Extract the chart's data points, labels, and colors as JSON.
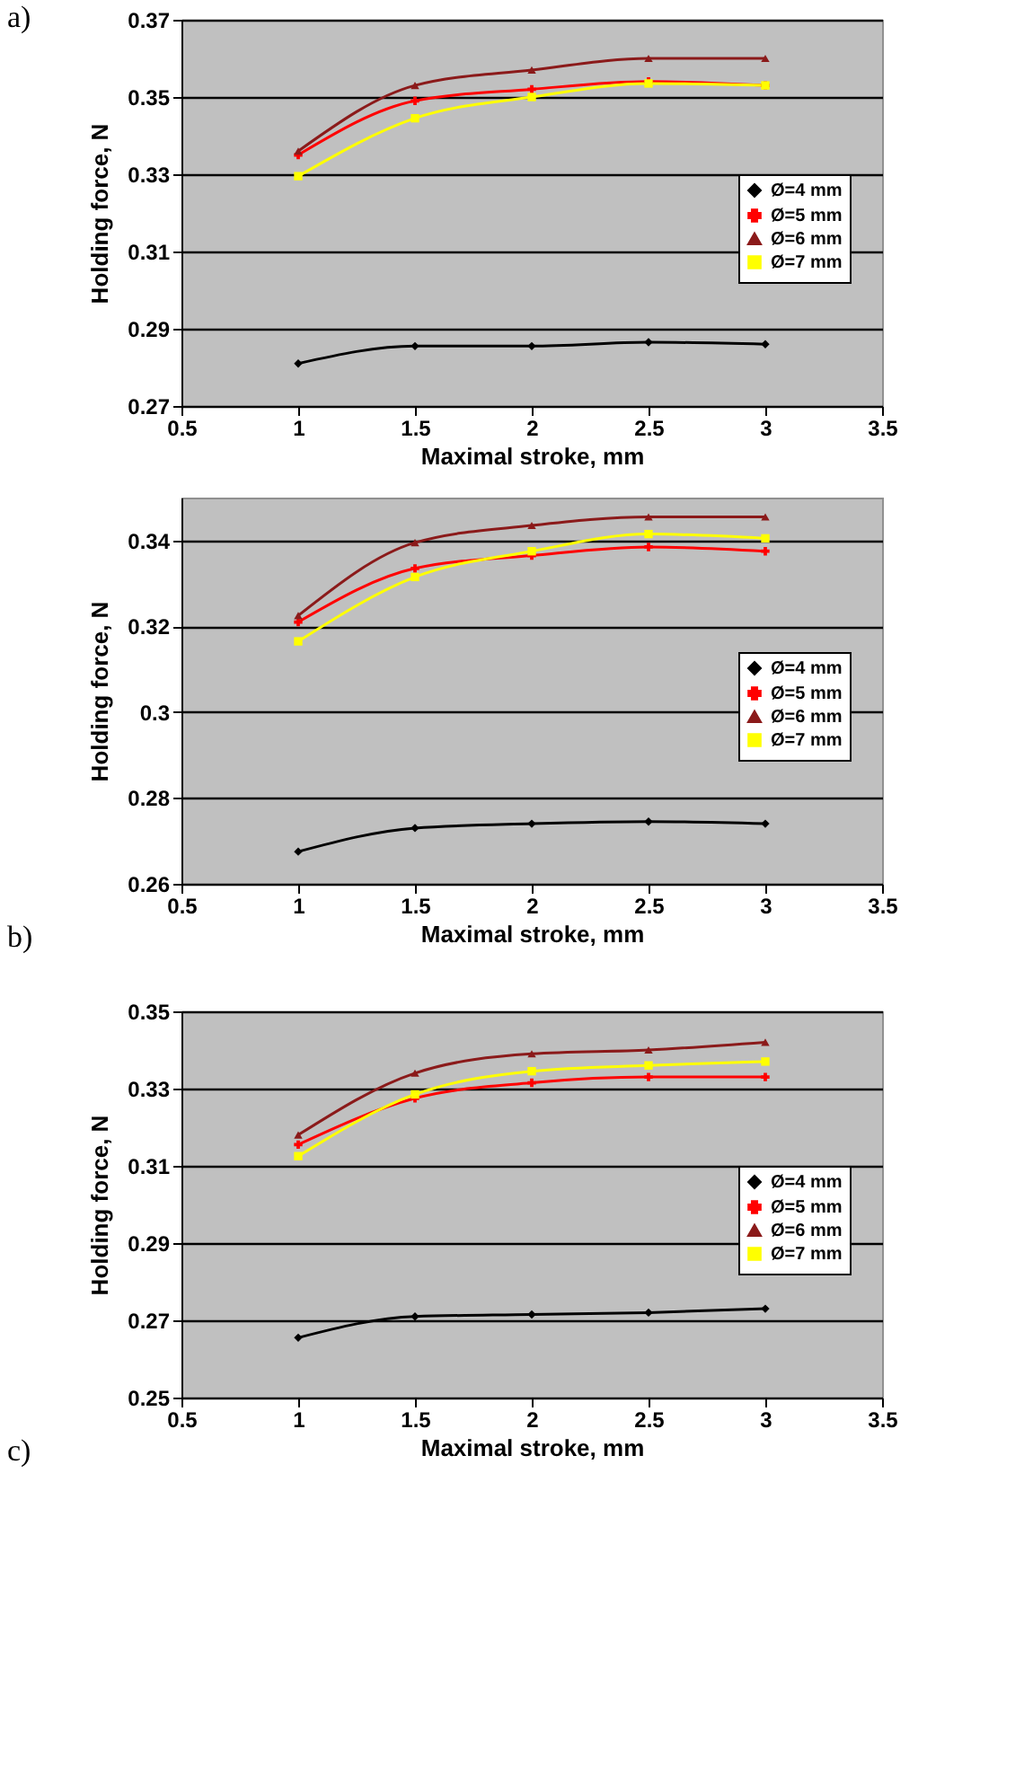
{
  "chart_data": [
    {
      "type": "line",
      "xlabel": "Maximal stroke, mm",
      "ylabel": "Holding force, N",
      "annotations": [
        "a)"
      ],
      "x": [
        1,
        1.5,
        2,
        2.5,
        3
      ],
      "xlim": [
        0.5,
        3.5
      ],
      "xticks": [
        0.5,
        1,
        1.5,
        2,
        2.5,
        3,
        3.5
      ],
      "ylim": [
        0.27,
        0.37
      ],
      "yticks": [
        0.27,
        0.29,
        0.31,
        0.33,
        0.35,
        0.37
      ],
      "grid": "y",
      "legend": "right",
      "series": [
        {
          "name": "Ø=4 mm",
          "color": "#000000",
          "marker": "diamond",
          "values": [
            0.281,
            0.2855,
            0.2855,
            0.2865,
            0.286
          ]
        },
        {
          "name": "Ø=5 mm",
          "color": "#ff0000",
          "marker": "cross",
          "values": [
            0.335,
            0.349,
            0.352,
            0.354,
            0.353
          ]
        },
        {
          "name": "Ø=6 mm",
          "color": "#8b1a1a",
          "marker": "triangle",
          "values": [
            0.336,
            0.353,
            0.357,
            0.36,
            0.36
          ]
        },
        {
          "name": "Ø=7 mm",
          "color": "#ffff00",
          "marker": "square",
          "values": [
            0.3295,
            0.3445,
            0.35,
            0.3535,
            0.353
          ]
        }
      ]
    },
    {
      "type": "line",
      "xlabel": "Maximal stroke, mm",
      "ylabel": "Holding force, N",
      "annotations": [
        "b)"
      ],
      "x": [
        1,
        1.5,
        2,
        2.5,
        3
      ],
      "xlim": [
        0.5,
        3.5
      ],
      "xticks": [
        0.5,
        1,
        1.5,
        2,
        2.5,
        3,
        3.5
      ],
      "ylim": [
        0.26,
        0.35
      ],
      "yticks": [
        0.26,
        0.28,
        {
          "value": 0.3,
          "label": "0.3"
        },
        0.32,
        0.34
      ],
      "grid": "y",
      "legend": "right",
      "series": [
        {
          "name": "Ø=4 mm",
          "color": "#000000",
          "marker": "diamond",
          "values": [
            0.2675,
            0.273,
            0.274,
            0.2745,
            0.274
          ]
        },
        {
          "name": "Ø=5 mm",
          "color": "#ff0000",
          "marker": "cross",
          "values": [
            0.321,
            0.3335,
            0.3365,
            0.3385,
            0.3375
          ]
        },
        {
          "name": "Ø=6 mm",
          "color": "#8b1a1a",
          "marker": "triangle",
          "values": [
            0.3225,
            0.3395,
            0.3435,
            0.3455,
            0.3455
          ]
        },
        {
          "name": "Ø=7 mm",
          "color": "#ffff00",
          "marker": "square",
          "values": [
            0.3165,
            0.3315,
            0.3375,
            0.3415,
            0.3405
          ]
        }
      ]
    },
    {
      "type": "line",
      "xlabel": "Maximal stroke, mm",
      "ylabel": "Holding force, N",
      "annotations": [
        "c)"
      ],
      "x": [
        1,
        1.5,
        2,
        2.5,
        3
      ],
      "xlim": [
        0.5,
        3.5
      ],
      "xticks": [
        0.5,
        1,
        1.5,
        2,
        2.5,
        3,
        3.5
      ],
      "ylim": [
        0.25,
        0.35
      ],
      "yticks": [
        0.25,
        0.27,
        0.29,
        0.31,
        0.33,
        0.35
      ],
      "grid": "y",
      "legend": "right",
      "series": [
        {
          "name": "Ø=4 mm",
          "color": "#000000",
          "marker": "diamond",
          "values": [
            0.2655,
            0.271,
            0.2715,
            0.272,
            0.273
          ]
        },
        {
          "name": "Ø=5 mm",
          "color": "#ff0000",
          "marker": "cross",
          "values": [
            0.3155,
            0.3275,
            0.3315,
            0.333,
            0.333
          ]
        },
        {
          "name": "Ø=6 mm",
          "color": "#8b1a1a",
          "marker": "triangle",
          "values": [
            0.318,
            0.334,
            0.339,
            0.34,
            0.342
          ]
        },
        {
          "name": "Ø=7 mm",
          "color": "#ffff00",
          "marker": "square",
          "values": [
            0.3125,
            0.3285,
            0.3345,
            0.336,
            0.337
          ]
        }
      ]
    }
  ]
}
